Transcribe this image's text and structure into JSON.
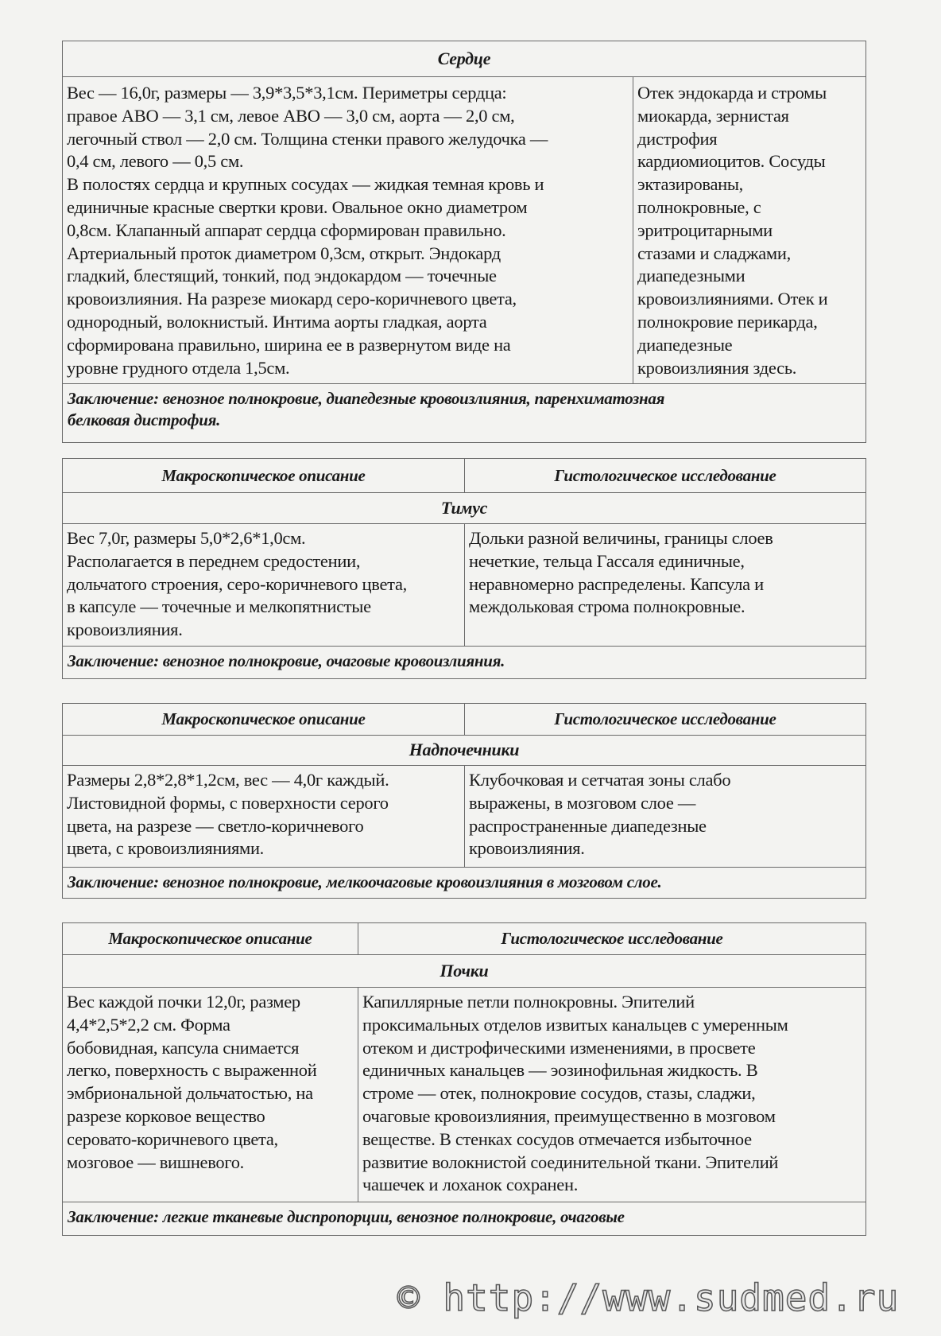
{
  "heart": {
    "organ": "Сердце",
    "macro_lines": [
      "Вес — 16,0г, размеры — 3,9*3,5*3,1см. Периметры сердца:",
      "правое АВО — 3,1 см, левое АВО — 3,0 см, аорта — 2,0 см,",
      "легочный ствол — 2,0 см. Толщина стенки правого желудочка —",
      "0,4 см, левого — 0,5 см.",
      "В  полостях сердца и крупных сосудах — жидкая темная кровь и",
      "единичные красные свертки крови. Овальное окно диаметром",
      "0,8см. Клапанный  аппарат  сердца сформирован правильно.",
      "Артериальный проток диаметром 0,3см, открыт. Эндокард",
      "гладкий, блестящий, тонкий, под эндокардом — точечные",
      "кровоизлияния. На разрезе миокард серо-коричневого цвета,",
      "однородный, волокнистый. Интима аорты гладкая, аорта",
      "сформирована правильно, ширина ее в развернутом виде на",
      "уровне грудного отдела 1,5см."
    ],
    "histo_lines": [
      "Отек эндокарда и стромы",
      "миокарда,  зернистая",
      "дистрофия",
      "кардиомиоцитов. Сосуды",
      "эктазированы,",
      "полнокровные, с",
      "эритроцитарными",
      "стазами и сладжами,",
      "диапедезными",
      "кровоизлияниями. Отек и",
      "полнокровие перикарда,",
      "диапедезные",
      "кровоизлияния здесь."
    ],
    "conclusion_lines": [
      "Заключение: венозное полнокровие, диапедезные кровоизлияния, паренхиматозная",
      "белковая дистрофия."
    ]
  },
  "thymus": {
    "header_macro": "Макроскопическое  описание",
    "header_histo": "Гистологическое  исследование",
    "organ": "Тимус",
    "macro_lines": [
      "Вес 7,0г, размеры 5,0*2,6*1,0см.",
      "Располагается в переднем средостении,",
      "дольчатого строения, серо-коричневого цвета,",
      "в капсуле — точечные и мелкопятнистые",
      "кровоизлияния."
    ],
    "histo_lines": [
      "Дольки разной величины, границы слоев",
      "нечеткие, тельца Гассаля единичные,",
      "неравномерно распределены. Капсула и",
      "междольковая строма полнокровные."
    ],
    "conclusion_lines": [
      "Заключение:  венозное полнокровие, очаговые кровоизлияния."
    ]
  },
  "adrenals": {
    "header_macro": "Макроскопическое  описание",
    "header_histo": "Гистологическое  исследование",
    "organ": "Надпочечники",
    "macro_lines": [
      "Размеры 2,8*2,8*1,2см, вес — 4,0г каждый.",
      "Листовидной формы, с поверхности серого",
      "цвета, на разрезе — светло-коричневого",
      "цвета, с кровоизлияниями."
    ],
    "histo_lines": [
      "Клубочковая и сетчатая зоны слабо",
      "выражены, в мозговом слое —",
      "распространенные диапедезные",
      "кровоизлияния."
    ],
    "conclusion_lines": [
      "Заключение: венозное полнокровие, мелкоочаговые кровоизлияния в мозговом слое."
    ]
  },
  "kidneys": {
    "header_macro": "Макроскопическое  описание",
    "header_histo": "Гистологическое  исследование",
    "organ": "Почки",
    "macro_lines": [
      "Вес каждой почки 12,0г, размер",
      "4,4*2,5*2,2 см.  Форма",
      "бобовидная, капсула снимается",
      "легко, поверхность с выраженной",
      "эмбриональной дольчатостью, на",
      "разрезе корковое вещество",
      "серовато-коричневого цвета,",
      "мозговое — вишневого."
    ],
    "histo_lines": [
      "Капиллярные петли полнокровны. Эпителий",
      "проксимальных отделов извитых канальцев с умеренным",
      "отеком и дистрофическими изменениями, в просвете",
      "единичных канальцев — эозинофильная жидкость. В",
      "строме — отек, полнокровие сосудов, стазы, сладжи,",
      "очаговые кровоизлияния, преимущественно в мозговом",
      "веществе. В стенках сосудов отмечается избыточное",
      "развитие волокнистой соединительной ткани. Эпителий",
      "чашечек и лоханок сохранен."
    ],
    "conclusion_lines": [
      "Заключение: легкие тканевые диспропорции, венозное полнокровие, очаговые"
    ]
  },
  "watermark": "© http://www.sudmed.ru"
}
